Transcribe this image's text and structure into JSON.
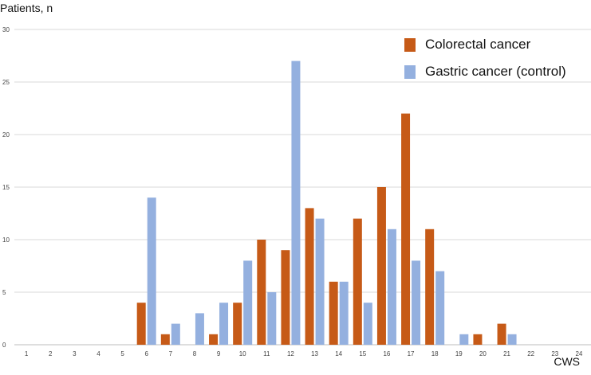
{
  "chart_data": {
    "type": "bar",
    "ylabel": "Patients, n",
    "xlabel": "CWS",
    "categories": [
      "1",
      "2",
      "3",
      "4",
      "5",
      "6",
      "7",
      "8",
      "9",
      "10",
      "11",
      "12",
      "13",
      "14",
      "15",
      "16",
      "17",
      "18",
      "19",
      "20",
      "21",
      "22",
      "23",
      "24"
    ],
    "ylim": [
      0,
      30
    ],
    "yticks": [
      0,
      5,
      10,
      15,
      20,
      25,
      30
    ],
    "grid": true,
    "legend_position": "top-right",
    "series": [
      {
        "name": "Colorectal cancer",
        "color": "#c65a17",
        "values": [
          0,
          0,
          0,
          0,
          0,
          4,
          1,
          0,
          1,
          4,
          10,
          9,
          13,
          6,
          12,
          15,
          22,
          11,
          0,
          1,
          2,
          0,
          0,
          0
        ]
      },
      {
        "name": "Gastric cancer (control)",
        "color": "#94b0df",
        "values": [
          0,
          0,
          0,
          0,
          0,
          14,
          2,
          3,
          4,
          8,
          5,
          27,
          12,
          6,
          4,
          11,
          8,
          7,
          1,
          0,
          1,
          0,
          0,
          0
        ]
      }
    ]
  }
}
